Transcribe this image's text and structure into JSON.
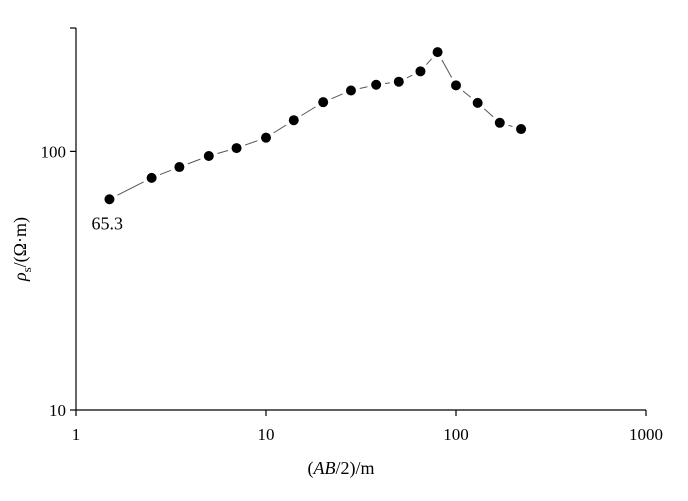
{
  "chart_data": {
    "type": "line",
    "xscale": "log",
    "yscale": "log",
    "xlim": [
      1,
      1000
    ],
    "ylim": [
      10,
      300
    ],
    "x_ticks": [
      "1",
      "10",
      "100",
      "1000"
    ],
    "y_ticks": [
      "10",
      "100"
    ],
    "xlabel": "(AB/2)/m",
    "ylabel": "ρs/(Ω·m)",
    "series": [
      {
        "x": [
          1.5,
          2.5,
          3.5,
          5,
          7,
          10,
          14,
          20,
          28,
          38,
          50,
          65,
          80,
          100,
          130,
          170,
          220
        ],
        "y": [
          65.3,
          79,
          87,
          96,
          103,
          113,
          132,
          155,
          172,
          181,
          186,
          204,
          242,
          180,
          154,
          129,
          122
        ]
      }
    ],
    "annotations": [
      {
        "text": "65.3",
        "x": 1.5,
        "y": 65.3
      }
    ],
    "grid": false,
    "legend": "none",
    "marker_color": "#000000",
    "line_color": "#555555",
    "line_style": "dashed"
  }
}
